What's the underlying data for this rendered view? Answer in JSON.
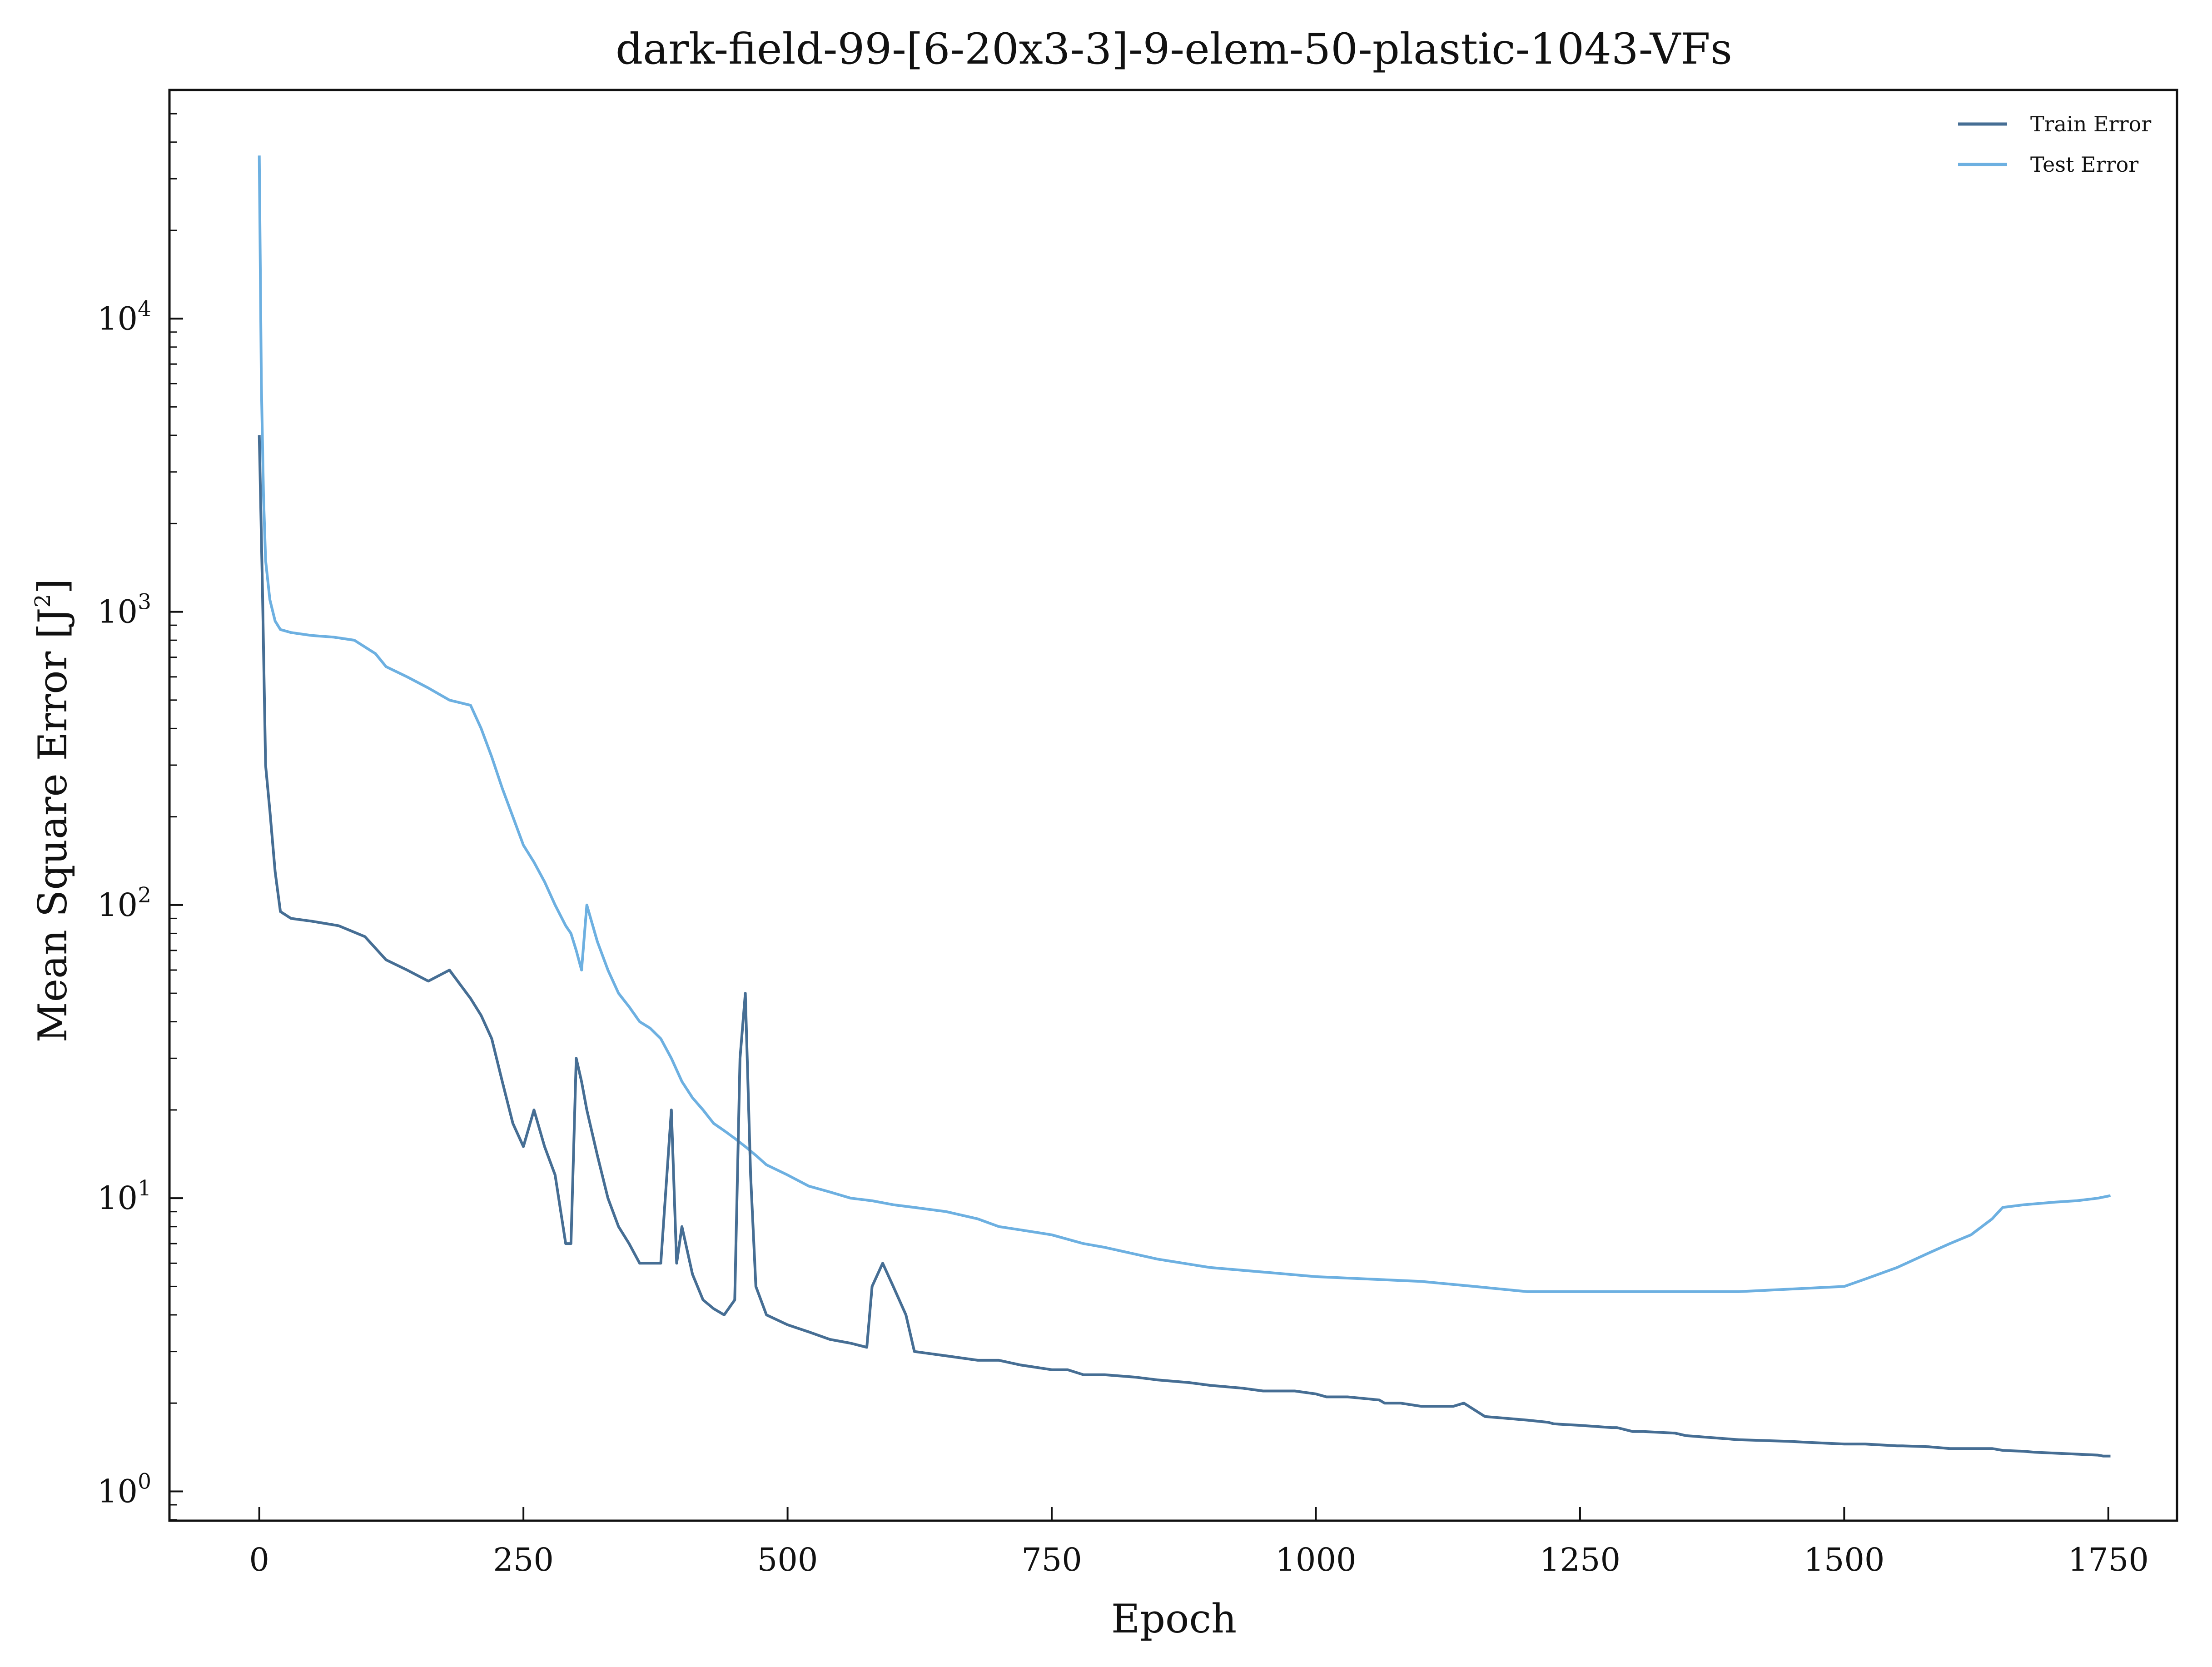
{
  "chart_data": {
    "type": "line",
    "title": "dark-field-99-[6-20x3-3]-9-elem-50-plastic-1043-VFs",
    "xlabel": "Epoch",
    "ylabel": "Mean Square Error [J",
    "ylabel_sup": "2",
    "ylabel_close": "]",
    "xlim": [
      -85,
      1815
    ],
    "ylim_log10": [
      -0.1,
      4.78
    ],
    "yscale": "log",
    "x_ticks": [
      0,
      250,
      500,
      750,
      1000,
      1250,
      1500,
      1750
    ],
    "x_tick_labels": [
      "0",
      "250",
      "500",
      "750",
      "1000",
      "1250",
      "1500",
      "1750"
    ],
    "y_ticks": [
      {
        "value": 1,
        "base": "10",
        "exp": "0"
      },
      {
        "value": 10,
        "base": "10",
        "exp": "1"
      },
      {
        "value": 100,
        "base": "10",
        "exp": "2"
      },
      {
        "value": 1000,
        "base": "10",
        "exp": "3"
      },
      {
        "value": 10000,
        "base": "10",
        "exp": "4"
      }
    ],
    "legend_position": "top-right",
    "grid": false,
    "series": [
      {
        "name": "Train Error",
        "color": "#466e94",
        "x": [
          0,
          3,
          6,
          10,
          15,
          20,
          30,
          50,
          75,
          100,
          120,
          140,
          160,
          180,
          200,
          210,
          220,
          230,
          240,
          250,
          260,
          270,
          280,
          290,
          295,
          300,
          305,
          310,
          320,
          330,
          340,
          350,
          360,
          370,
          380,
          390,
          395,
          400,
          410,
          420,
          430,
          440,
          450,
          455,
          460,
          465,
          470,
          480,
          500,
          520,
          540,
          560,
          575,
          580,
          590,
          600,
          612,
          620,
          650,
          680,
          700,
          720,
          750,
          765,
          780,
          800,
          830,
          850,
          880,
          900,
          930,
          950,
          980,
          1000,
          1010,
          1030,
          1060,
          1065,
          1080,
          1100,
          1130,
          1140,
          1160,
          1200,
          1220,
          1225,
          1250,
          1280,
          1285,
          1300,
          1310,
          1340,
          1350,
          1380,
          1400,
          1450,
          1465,
          1500,
          1520,
          1550,
          1555,
          1580,
          1600,
          1640,
          1650,
          1670,
          1680,
          1700,
          1720,
          1740,
          1745,
          1752
        ],
        "y": [
          4000,
          1200,
          300,
          210,
          130,
          95,
          90,
          88,
          85,
          78,
          65,
          60,
          55,
          60,
          48,
          42,
          35,
          25,
          18,
          15,
          20,
          15,
          12,
          7,
          7,
          30,
          25,
          20,
          14,
          10,
          8,
          7,
          6,
          6,
          6,
          20,
          6,
          8,
          5.5,
          4.5,
          4.2,
          4,
          4.5,
          30,
          50,
          12,
          5,
          4,
          3.7,
          3.5,
          3.3,
          3.2,
          3.1,
          5,
          6,
          5,
          4,
          3,
          2.9,
          2.8,
          2.8,
          2.7,
          2.6,
          2.6,
          2.5,
          2.5,
          2.45,
          2.4,
          2.35,
          2.3,
          2.25,
          2.2,
          2.2,
          2.15,
          2.1,
          2.1,
          2.05,
          2,
          2,
          1.95,
          1.95,
          2,
          1.8,
          1.75,
          1.72,
          1.7,
          1.68,
          1.65,
          1.65,
          1.6,
          1.6,
          1.58,
          1.55,
          1.52,
          1.5,
          1.48,
          1.47,
          1.45,
          1.45,
          1.43,
          1.43,
          1.42,
          1.4,
          1.4,
          1.38,
          1.37,
          1.36,
          1.35,
          1.34,
          1.33,
          1.32,
          1.32
        ]
      },
      {
        "name": "Test Error",
        "color": "#6db0e1",
        "x": [
          0,
          2,
          4,
          6,
          10,
          15,
          20,
          30,
          50,
          70,
          90,
          110,
          120,
          140,
          160,
          180,
          200,
          210,
          220,
          230,
          240,
          250,
          260,
          270,
          280,
          290,
          295,
          300,
          305,
          310,
          320,
          330,
          340,
          350,
          360,
          370,
          380,
          390,
          400,
          410,
          420,
          430,
          440,
          450,
          460,
          470,
          480,
          500,
          520,
          540,
          560,
          580,
          600,
          620,
          650,
          680,
          700,
          720,
          750,
          780,
          800,
          850,
          900,
          950,
          1000,
          1050,
          1100,
          1150,
          1200,
          1250,
          1300,
          1350,
          1400,
          1450,
          1500,
          1520,
          1550,
          1580,
          1600,
          1620,
          1640,
          1650,
          1670,
          1700,
          1720,
          1740,
          1752
        ],
        "y": [
          36000,
          6000,
          2500,
          1500,
          1100,
          930,
          870,
          850,
          830,
          820,
          800,
          720,
          650,
          600,
          550,
          500,
          480,
          400,
          320,
          250,
          200,
          160,
          140,
          120,
          100,
          85,
          80,
          70,
          60,
          100,
          75,
          60,
          50,
          45,
          40,
          38,
          35,
          30,
          25,
          22,
          20,
          18,
          17,
          16,
          15,
          14,
          13,
          12,
          11,
          10.5,
          10,
          9.8,
          9.5,
          9.3,
          9,
          8.5,
          8,
          7.8,
          7.5,
          7,
          6.8,
          6.2,
          5.8,
          5.6,
          5.4,
          5.3,
          5.2,
          5,
          4.8,
          4.8,
          4.8,
          4.8,
          4.8,
          4.9,
          5,
          5.3,
          5.8,
          6.5,
          7,
          7.5,
          8.5,
          9.3,
          9.5,
          9.7,
          9.8,
          10,
          10.2
        ]
      }
    ]
  }
}
